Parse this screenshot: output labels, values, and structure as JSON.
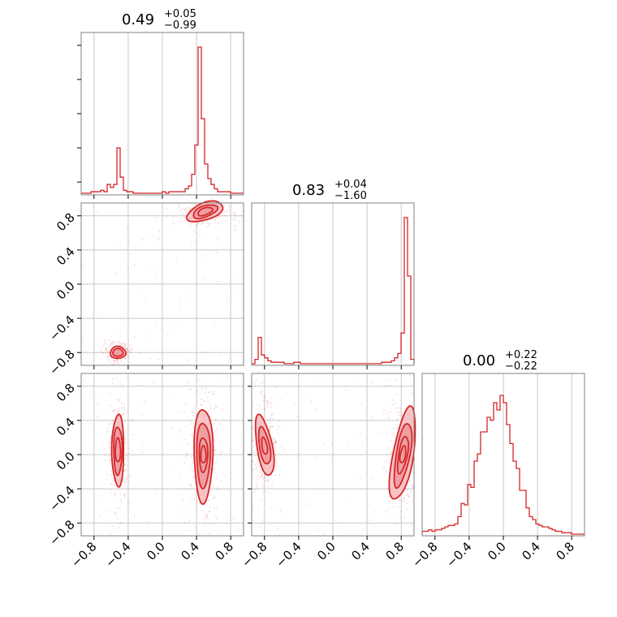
{
  "chart_data": {
    "type": "corner",
    "colors": {
      "series": "#d62728",
      "fill_light": "#f7c3c6",
      "fill_mid": "#ef9fa3",
      "grid": "#c8c8c8",
      "frame": "#808080"
    },
    "parameters": [
      {
        "median": "0.49",
        "plus": "+0.05",
        "minus": "−0.99",
        "range": [
          -0.95,
          0.95
        ]
      },
      {
        "median": "0.83",
        "plus": "+0.04",
        "minus": "−1.60",
        "range": [
          -0.95,
          0.95
        ]
      },
      {
        "median": "0.00",
        "plus": "+0.22",
        "minus": "−0.22",
        "range": [
          -0.95,
          0.95
        ]
      }
    ],
    "ticks": [
      -0.8,
      -0.4,
      0.0,
      0.4,
      0.8
    ],
    "tick_labels": [
      "−0.8",
      "−0.4",
      "0.0",
      "0.4",
      "0.8"
    ],
    "grid": true,
    "histograms": [
      {
        "name": "param-1",
        "bins": [
          -0.95,
          0.95
        ],
        "values": [
          0.0,
          0.0,
          0.0,
          0.01,
          0.01,
          0.01,
          0.02,
          0.01,
          0.06,
          0.04,
          0.06,
          0.31,
          0.11,
          0.02,
          0.01,
          0.01,
          0.0,
          0.0,
          0.0,
          0.0,
          0.0,
          0.0,
          0.0,
          0.0,
          0.0,
          0.01,
          0.0,
          0.01,
          0.01,
          0.01,
          0.01,
          0.01,
          0.03,
          0.05,
          0.13,
          0.33,
          1.0,
          0.51,
          0.2,
          0.1,
          0.06,
          0.03,
          0.01,
          0.01,
          0.01,
          0.01,
          0.0,
          0.0,
          0.0,
          0.0
        ]
      },
      {
        "name": "param-2",
        "bins": [
          -0.95,
          0.95
        ],
        "values": [
          0.0,
          0.03,
          0.18,
          0.06,
          0.04,
          0.02,
          0.01,
          0.01,
          0.01,
          0.01,
          0.0,
          0.0,
          0.0,
          0.01,
          0.01,
          0.0,
          0.0,
          0.0,
          0.0,
          0.0,
          0.0,
          0.0,
          0.0,
          0.0,
          0.0,
          0.0,
          0.0,
          0.0,
          0.0,
          0.0,
          0.0,
          0.0,
          0.0,
          0.0,
          0.0,
          0.0,
          0.0,
          0.0,
          0.0,
          0.0,
          0.01,
          0.01,
          0.01,
          0.02,
          0.04,
          0.07,
          0.21,
          1.0,
          0.6,
          0.03
        ]
      },
      {
        "name": "param-3",
        "bins": [
          -0.95,
          0.95
        ],
        "values": [
          0.02,
          0.02,
          0.03,
          0.02,
          0.03,
          0.03,
          0.04,
          0.05,
          0.06,
          0.06,
          0.07,
          0.12,
          0.21,
          0.2,
          0.34,
          0.32,
          0.5,
          0.55,
          0.7,
          0.7,
          0.8,
          0.78,
          0.9,
          0.85,
          0.95,
          0.9,
          0.75,
          0.62,
          0.5,
          0.45,
          0.3,
          0.3,
          0.18,
          0.12,
          0.1,
          0.07,
          0.06,
          0.05,
          0.05,
          0.04,
          0.03,
          0.02,
          0.02,
          0.01,
          0.01,
          0.01,
          0.0,
          0.0,
          0.0,
          0.0
        ]
      }
    ],
    "scatter_panels": [
      {
        "x_param": 1,
        "y_param": 2,
        "modes": [
          {
            "center": [
              0.5,
              0.85
            ],
            "level_rings": [
              [
                0.22,
                0.1
              ],
              [
                0.15,
                0.065
              ],
              [
                0.09,
                0.04
              ]
            ],
            "angle_deg": -20
          },
          {
            "center": [
              -0.52,
              -0.8
            ],
            "level_rings": [
              [
                0.09,
                0.07
              ],
              [
                0.06,
                0.045
              ]
            ],
            "angle_deg": 0
          }
        ]
      },
      {
        "x_param": 1,
        "y_param": 3,
        "modes": [
          {
            "center": [
              -0.52,
              0.05
            ],
            "level_rings": [
              [
                0.07,
                0.42
              ],
              [
                0.05,
                0.28
              ],
              [
                0.03,
                0.14
              ]
            ],
            "angle_deg": 0
          },
          {
            "center": [
              0.48,
              0.0
            ],
            "level_rings": [
              [
                0.11,
                0.55
              ],
              [
                0.08,
                0.38
              ],
              [
                0.05,
                0.2
              ],
              [
                0.03,
                0.1
              ]
            ],
            "angle_deg": 0
          }
        ]
      },
      {
        "x_param": 2,
        "y_param": 3,
        "modes": [
          {
            "center": [
              -0.8,
              0.1
            ],
            "level_rings": [
              [
                0.09,
                0.36
              ],
              [
                0.06,
                0.22
              ],
              [
                0.03,
                0.1
              ]
            ],
            "angle_deg": -10
          },
          {
            "center": [
              0.82,
              0.0
            ],
            "level_rings": [
              [
                0.12,
                0.55
              ],
              [
                0.08,
                0.38
              ],
              [
                0.05,
                0.22
              ],
              [
                0.03,
                0.1
              ]
            ],
            "angle_deg": 10
          }
        ]
      }
    ]
  }
}
